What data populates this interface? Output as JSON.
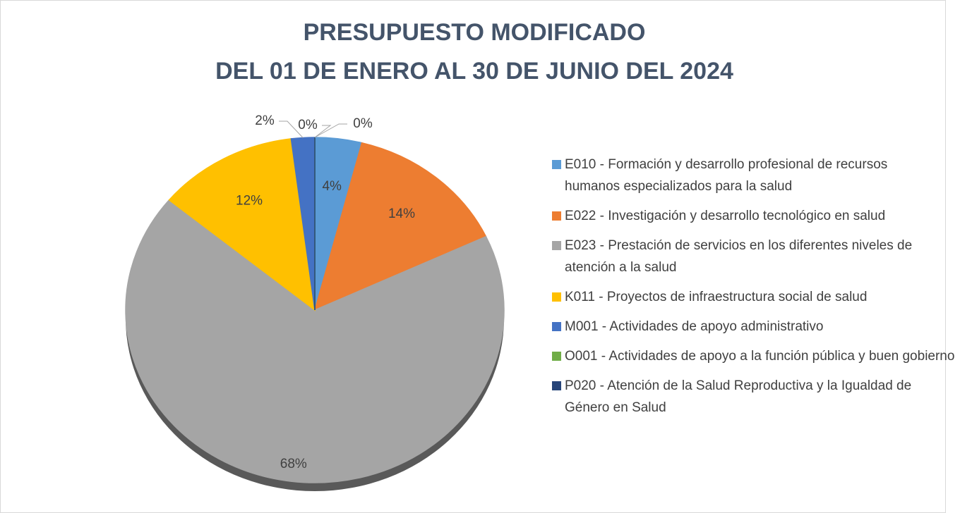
{
  "chart_data": {
    "type": "pie",
    "title": [
      "PRESUPUESTO MODIFICADO",
      "DEL 01 DE ENERO AL 30 DE JUNIO DEL 2024"
    ],
    "categories": [
      "E010 - Formación y desarrollo profesional de recursos humanos especializados para la salud",
      "E022 - Investigación y desarrollo tecnológico en salud",
      "E023 - Prestación de servicios en los diferentes niveles de atención a la salud",
      "K011 - Proyectos de infraestructura social de salud",
      "M001 - Actividades de apoyo administrativo",
      "O001 - Actividades de apoyo a la función pública y buen gobierno",
      "P020 - Atención de la Salud Reproductiva y la Igualdad de Género en Salud"
    ],
    "values": [
      4,
      14,
      68,
      12,
      2,
      0,
      0
    ],
    "value_labels": [
      "4%",
      "14%",
      "68%",
      "12%",
      "2%",
      "0%",
      "0%"
    ],
    "colors": [
      "#5b9bd5",
      "#ed7d31",
      "#a5a5a5",
      "#ffc000",
      "#4472c4",
      "#70ad47",
      "#264478"
    ],
    "legend": "right"
  }
}
